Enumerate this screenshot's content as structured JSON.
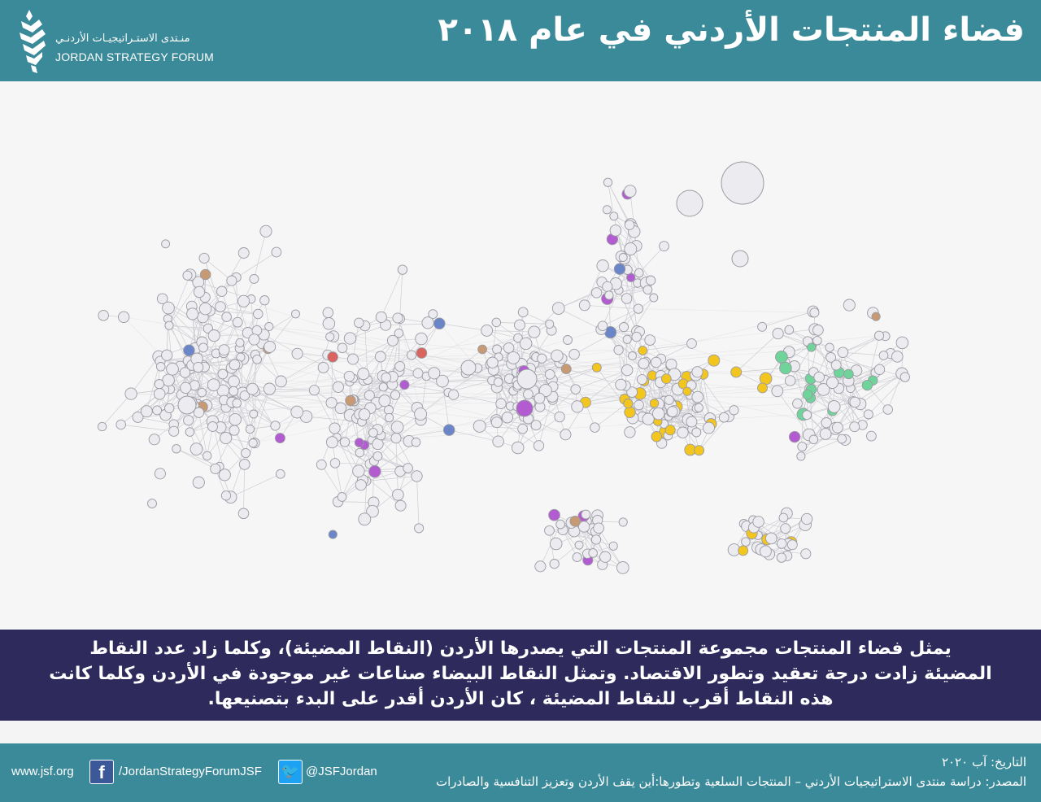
{
  "header": {
    "title": "فضاء المنتجات الأردني في عام ٢٠١٨",
    "logo_ar": "منـتدى الاستـراتيجيـات الأردنـي",
    "logo_en": "JORDAN STRATEGY FORUM",
    "logo_icon": "jsf-logo-icon"
  },
  "description": {
    "lines": [
      "يمثل فضاء المنتجات مجموعة المنتجات التي يصدرها الأردن (النقاط المضيئة)، وكلما زاد عدد النقاط",
      "المضيئة زادت درجة تعقيد وتطور الاقتصاد. وتمثل النقاط البيضاء صناعات غير موجودة في الأردن وكلما كانت",
      "هذه النقاط أقرب للنقاط المضيئة ، كان الأردن أقدر على البدء بتصنيعها."
    ]
  },
  "footer": {
    "date": "التاريخ: آب ٢٠٢٠",
    "source": "المصدر: دراسة منتدى الاستراتيجيات الأردني – المنتجات السلعية وتطورها:أين يقف الأردن وتعزيز التنافسية والصادرات",
    "website": "www.jsf.org",
    "facebook": "/JordanStrategyForumJSF",
    "facebook_icon": "facebook-icon",
    "twitter": "@JSFJordan",
    "twitter_icon": "twitter-icon"
  },
  "colors": {
    "header_bg": "#3b8a9a",
    "description_bg": "#2e2a5c",
    "node_white": "#ececf0",
    "node_yellow": "#f2c61f",
    "node_purple": "#b35bd0",
    "node_green": "#6ed49a",
    "node_red": "#d9645e",
    "node_blue": "#6a86c8",
    "node_brown": "#c79a74",
    "node_cyan": "#7ad7dd",
    "edge": "#c4c4cc"
  }
}
